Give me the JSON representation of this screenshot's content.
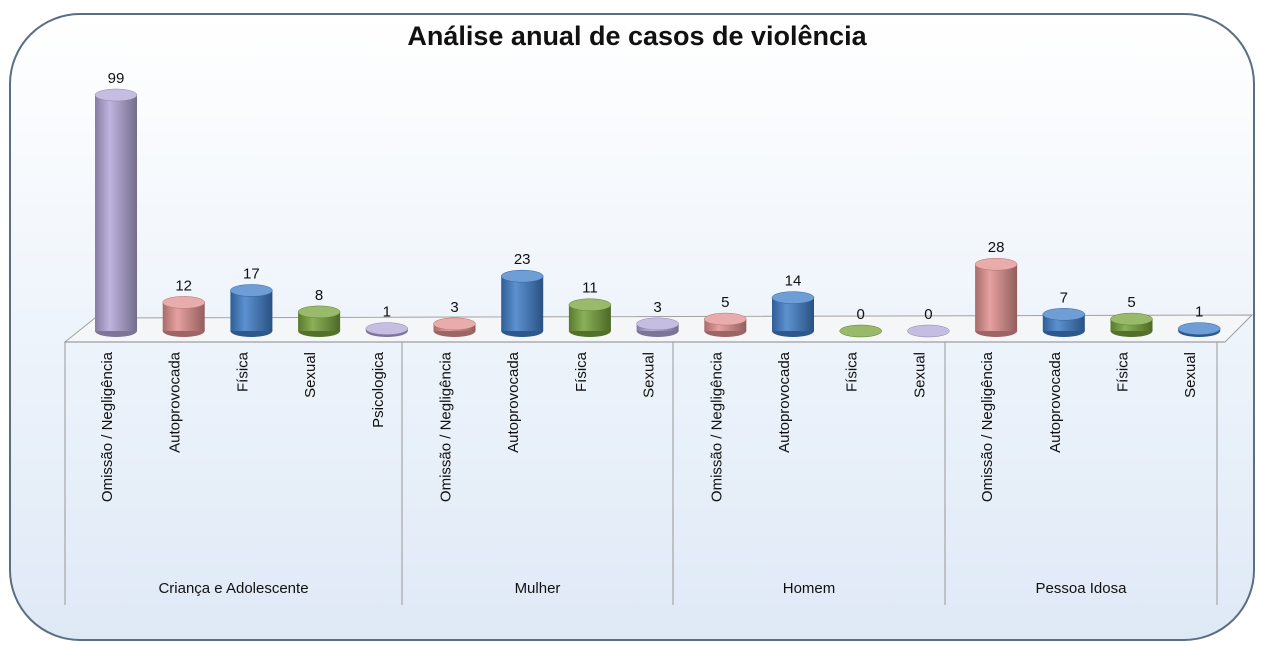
{
  "chart_data": {
    "type": "bar3d",
    "title": "Análise anual de casos de violência",
    "categories": [
      "Omissão / Negligência",
      "Autoprovocada",
      "Física",
      "Sexual",
      "Psicologica",
      "Omissão / Negligência",
      "Autoprovocada",
      "Física",
      "Sexual",
      "Omissão / Negligência",
      "Autoprovocada",
      "Física",
      "Sexual",
      "Omissão / Negligência",
      "Autoprovocada",
      "Física",
      "Sexual"
    ],
    "groups": [
      {
        "name": "Criança e Adolescente",
        "size": 5
      },
      {
        "name": "Mulher",
        "size": 4
      },
      {
        "name": "Homem",
        "size": 4
      },
      {
        "name": "Pessoa Idosa",
        "size": 4
      }
    ],
    "values": [
      99,
      12,
      17,
      8,
      1,
      3,
      23,
      11,
      3,
      5,
      14,
      0,
      0,
      28,
      7,
      5,
      1
    ],
    "colors": [
      "#b3a7d8",
      "#e0908e",
      "#3f7dc8",
      "#77a23a",
      "#b3a7d8",
      "#e0908e",
      "#3f7dc8",
      "#77a23a",
      "#b3a7d8",
      "#e0908e",
      "#3f7dc8",
      "#77a23a",
      "#b3a7d8",
      "#e0908e",
      "#3f7dc8",
      "#77a23a",
      "#3f7dc8"
    ]
  }
}
